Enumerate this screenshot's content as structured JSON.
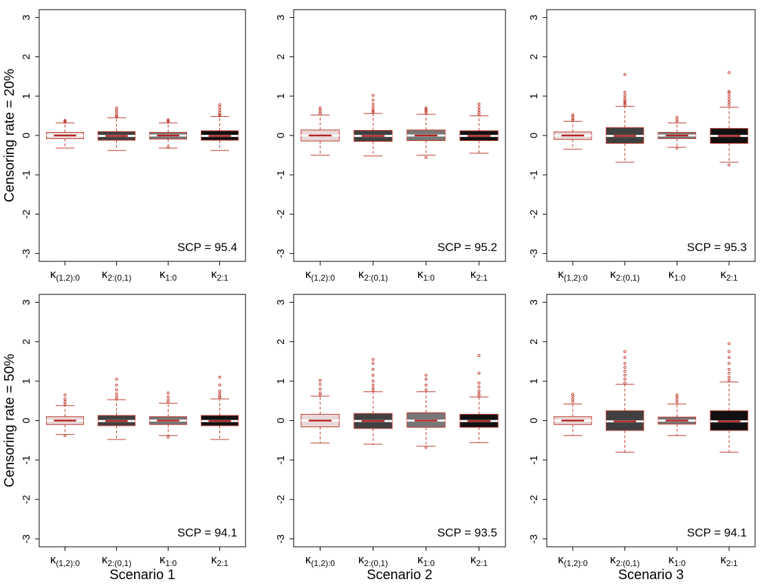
{
  "chart_data": {
    "type": "boxplot",
    "layout": {
      "rows": 2,
      "cols": 3
    },
    "categories": [
      "κ(1,2):0",
      "κ2:(0,1)",
      "κ1:0",
      "κ2:1"
    ],
    "category_parts": [
      {
        "base": "κ",
        "sub": "(1,2):0"
      },
      {
        "base": "κ",
        "sub": "2:(0,1)"
      },
      {
        "base": "κ",
        "sub": "1:0"
      },
      {
        "base": "κ",
        "sub": "2:1"
      }
    ],
    "ylim": [
      -3.2,
      3.2
    ],
    "yticks": [
      "-3",
      "-2",
      "-1",
      "0",
      "1",
      "2",
      "3"
    ],
    "row_labels": [
      "Censoring rate = 20%",
      "Censoring rate = 50%"
    ],
    "column_labels": [
      "Scenario 1",
      "Scenario 2",
      "Scenario 3"
    ],
    "box_colors": [
      "#e8d8d8",
      "#404040",
      "#777777",
      "#111111"
    ],
    "outline_color": "#c0392b",
    "median_color": "#b22222",
    "panels": [
      {
        "row": 0,
        "col": 0,
        "annotation": "SCP = 95.4",
        "boxes": [
          {
            "whisker_low": -0.32,
            "q1": -0.08,
            "median": 0.0,
            "q3": 0.08,
            "whisker_high": 0.32,
            "outliers": [
              0.34,
              0.36,
              0.38
            ]
          },
          {
            "whisker_low": -0.38,
            "q1": -0.12,
            "median": -0.01,
            "q3": 0.1,
            "whisker_high": 0.45,
            "outliers": [
              0.47,
              0.5,
              0.55,
              0.6,
              0.65,
              0.7
            ]
          },
          {
            "whisker_low": -0.32,
            "q1": -0.09,
            "median": 0.0,
            "q3": 0.08,
            "whisker_high": 0.32,
            "outliers": [
              -0.3,
              0.34,
              0.37,
              0.4
            ]
          },
          {
            "whisker_low": -0.38,
            "q1": -0.12,
            "median": -0.01,
            "q3": 0.12,
            "whisker_high": 0.48,
            "outliers": [
              0.5,
              0.53,
              0.58,
              0.65,
              0.72,
              0.78
            ]
          }
        ]
      },
      {
        "row": 0,
        "col": 1,
        "annotation": "SCP = 95.2",
        "boxes": [
          {
            "whisker_low": -0.5,
            "q1": -0.14,
            "median": 0.0,
            "q3": 0.14,
            "whisker_high": 0.52,
            "outliers": [
              0.55,
              0.6,
              0.65,
              0.7
            ]
          },
          {
            "whisker_low": -0.52,
            "q1": -0.15,
            "median": -0.01,
            "q3": 0.13,
            "whisker_high": 0.56,
            "outliers": [
              0.58,
              0.62,
              0.66,
              0.72,
              0.8,
              0.9,
              1.02
            ]
          },
          {
            "whisker_low": -0.5,
            "q1": -0.13,
            "median": 0.0,
            "q3": 0.14,
            "whisker_high": 0.54,
            "outliers": [
              -0.56,
              0.58,
              0.62,
              0.66,
              0.7
            ]
          },
          {
            "whisker_low": -0.45,
            "q1": -0.13,
            "median": -0.01,
            "q3": 0.12,
            "whisker_high": 0.5,
            "outliers": [
              0.53,
              0.58,
              0.65,
              0.72,
              0.8
            ]
          }
        ]
      },
      {
        "row": 0,
        "col": 2,
        "annotation": "SCP = 95.3",
        "boxes": [
          {
            "whisker_low": -0.35,
            "q1": -0.1,
            "median": 0.0,
            "q3": 0.09,
            "whisker_high": 0.36,
            "outliers": [
              0.38,
              0.42,
              0.48,
              0.52
            ]
          },
          {
            "whisker_low": -0.68,
            "q1": -0.2,
            "median": -0.01,
            "q3": 0.2,
            "whisker_high": 0.74,
            "outliers": [
              0.78,
              0.82,
              0.86,
              0.9,
              0.95,
              1.02,
              1.1,
              1.55
            ]
          },
          {
            "whisker_low": -0.3,
            "q1": -0.08,
            "median": 0.0,
            "q3": 0.08,
            "whisker_high": 0.32,
            "outliers": [
              -0.32,
              0.35,
              0.4,
              0.46
            ]
          },
          {
            "whisker_low": -0.68,
            "q1": -0.2,
            "median": -0.01,
            "q3": 0.18,
            "whisker_high": 0.72,
            "outliers": [
              -0.75,
              0.78,
              0.85,
              0.92,
              1.0,
              1.08,
              1.12,
              1.6
            ]
          }
        ]
      },
      {
        "row": 1,
        "col": 0,
        "annotation": "SCP = 94.1",
        "boxes": [
          {
            "whisker_low": -0.35,
            "q1": -0.1,
            "median": 0.0,
            "q3": 0.1,
            "whisker_high": 0.38,
            "outliers": [
              -0.38,
              0.42,
              0.48,
              0.55,
              0.65
            ]
          },
          {
            "whisker_low": -0.48,
            "q1": -0.13,
            "median": -0.01,
            "q3": 0.13,
            "whisker_high": 0.53,
            "outliers": [
              0.55,
              0.6,
              0.68,
              0.78,
              0.9,
              1.05
            ]
          },
          {
            "whisker_low": -0.38,
            "q1": -0.1,
            "median": 0.0,
            "q3": 0.1,
            "whisker_high": 0.44,
            "outliers": [
              -0.42,
              0.47,
              0.52,
              0.6,
              0.7
            ]
          },
          {
            "whisker_low": -0.48,
            "q1": -0.13,
            "median": -0.01,
            "q3": 0.13,
            "whisker_high": 0.55,
            "outliers": [
              0.58,
              0.62,
              0.68,
              0.75,
              0.9,
              1.1
            ]
          }
        ]
      },
      {
        "row": 1,
        "col": 1,
        "annotation": "SCP = 93.5",
        "boxes": [
          {
            "whisker_low": -0.57,
            "q1": -0.16,
            "median": 0.0,
            "q3": 0.16,
            "whisker_high": 0.62,
            "outliers": [
              0.65,
              0.7,
              0.8,
              0.92,
              1.02
            ]
          },
          {
            "whisker_low": -0.6,
            "q1": -0.2,
            "median": -0.01,
            "q3": 0.18,
            "whisker_high": 0.73,
            "outliers": [
              0.76,
              0.82,
              0.9,
              1.0,
              1.15,
              1.3,
              1.45,
              1.55
            ]
          },
          {
            "whisker_low": -0.65,
            "q1": -0.17,
            "median": 0.0,
            "q3": 0.2,
            "whisker_high": 0.73,
            "outliers": [
              -0.68,
              0.78,
              0.9,
              1.05,
              1.15
            ]
          },
          {
            "whisker_low": -0.56,
            "q1": -0.17,
            "median": -0.01,
            "q3": 0.16,
            "whisker_high": 0.6,
            "outliers": [
              0.63,
              0.68,
              0.75,
              0.85,
              0.95,
              1.2,
              1.65
            ]
          }
        ]
      },
      {
        "row": 1,
        "col": 2,
        "annotation": "SCP = 94.1",
        "boxes": [
          {
            "whisker_low": -0.38,
            "q1": -0.1,
            "median": 0.0,
            "q3": 0.1,
            "whisker_high": 0.42,
            "outliers": [
              0.48,
              0.55,
              0.62,
              0.67
            ]
          },
          {
            "whisker_low": -0.8,
            "q1": -0.25,
            "median": -0.02,
            "q3": 0.25,
            "whisker_high": 0.92,
            "outliers": [
              0.95,
              1.05,
              1.15,
              1.25,
              1.35,
              1.45,
              1.6,
              1.75
            ]
          },
          {
            "whisker_low": -0.38,
            "q1": -0.09,
            "median": 0.0,
            "q3": 0.09,
            "whisker_high": 0.42,
            "outliers": [
              0.47,
              0.53,
              0.6,
              0.65
            ]
          },
          {
            "whisker_low": -0.8,
            "q1": -0.25,
            "median": -0.02,
            "q3": 0.25,
            "whisker_high": 0.98,
            "outliers": [
              1.02,
              1.1,
              1.2,
              1.3,
              1.45,
              1.6,
              1.75,
              1.95
            ]
          }
        ]
      }
    ]
  }
}
